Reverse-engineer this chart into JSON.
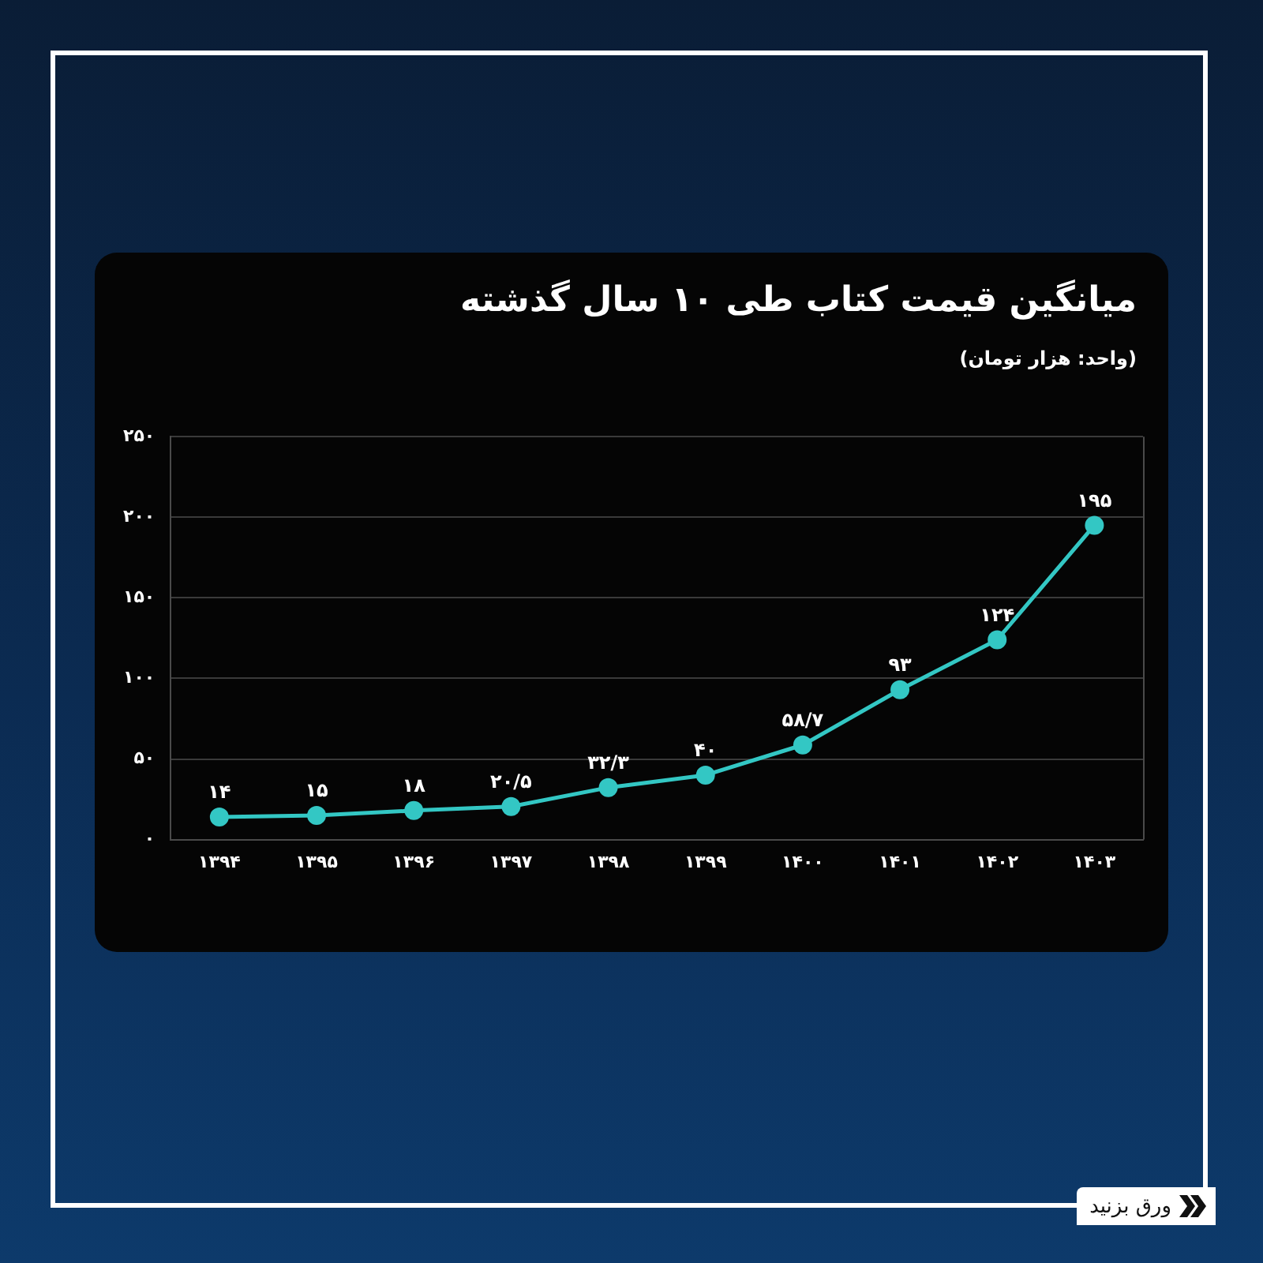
{
  "chart_data": {
    "type": "line",
    "title": "میانگین قیمت کتاب طی ۱۰ سال گذشته",
    "subtitle": "(واحد: هزار تومان)",
    "annotations": [
      "ورق بزنید"
    ],
    "categories": [
      "۱۳۹۴",
      "۱۳۹۵",
      "۱۳۹۶",
      "۱۳۹۷",
      "۱۳۹۸",
      "۱۳۹۹",
      "۱۴۰۰",
      "۱۴۰۱",
      "۱۴۰۲",
      "۱۴۰۳"
    ],
    "series": [
      {
        "color": "#33c7c4",
        "values": [
          14,
          15,
          18,
          20.5,
          32.3,
          40,
          58.7,
          93,
          124,
          195
        ],
        "value_labels": [
          "۱۴",
          "۱۵",
          "۱۸",
          "۲۰/۵",
          "۳۲/۳",
          "۴۰",
          "۵۸/۷",
          "۹۳",
          "۱۲۴",
          "۱۹۵"
        ]
      }
    ],
    "ylim": [
      0,
      250
    ],
    "yticks": [
      {
        "value": 0,
        "label": "۰"
      },
      {
        "value": 50,
        "label": "۵۰"
      },
      {
        "value": 100,
        "label": "۱۰۰"
      },
      {
        "value": 150,
        "label": "۱۵۰"
      },
      {
        "value": 200,
        "label": "۲۰۰"
      },
      {
        "value": 250,
        "label": "۲۵۰"
      }
    ],
    "grid": "y",
    "legend": false,
    "marker": "circle",
    "line_style": "solid"
  }
}
